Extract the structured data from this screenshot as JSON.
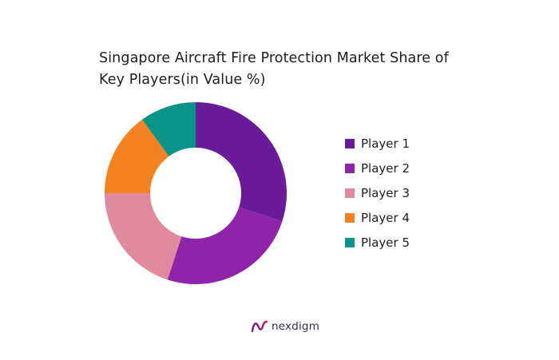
{
  "chart_data": {
    "type": "pie",
    "title_lines": [
      "Singapore Aircraft Fire Protection Market Share of",
      "Key Players(in Value %)"
    ],
    "categories": [
      "Player 1",
      "Player 2",
      "Player 3",
      "Player 4",
      "Player 5"
    ],
    "values": [
      30,
      25,
      20,
      15,
      10
    ],
    "colors": [
      "#6a1b9a",
      "#8e24aa",
      "#e08a9f",
      "#f58220",
      "#0a9488"
    ],
    "donut": true,
    "legend_position": "right"
  },
  "brand": {
    "name": "nexdigm",
    "logo_icon": "nexdigm-logo-icon"
  }
}
